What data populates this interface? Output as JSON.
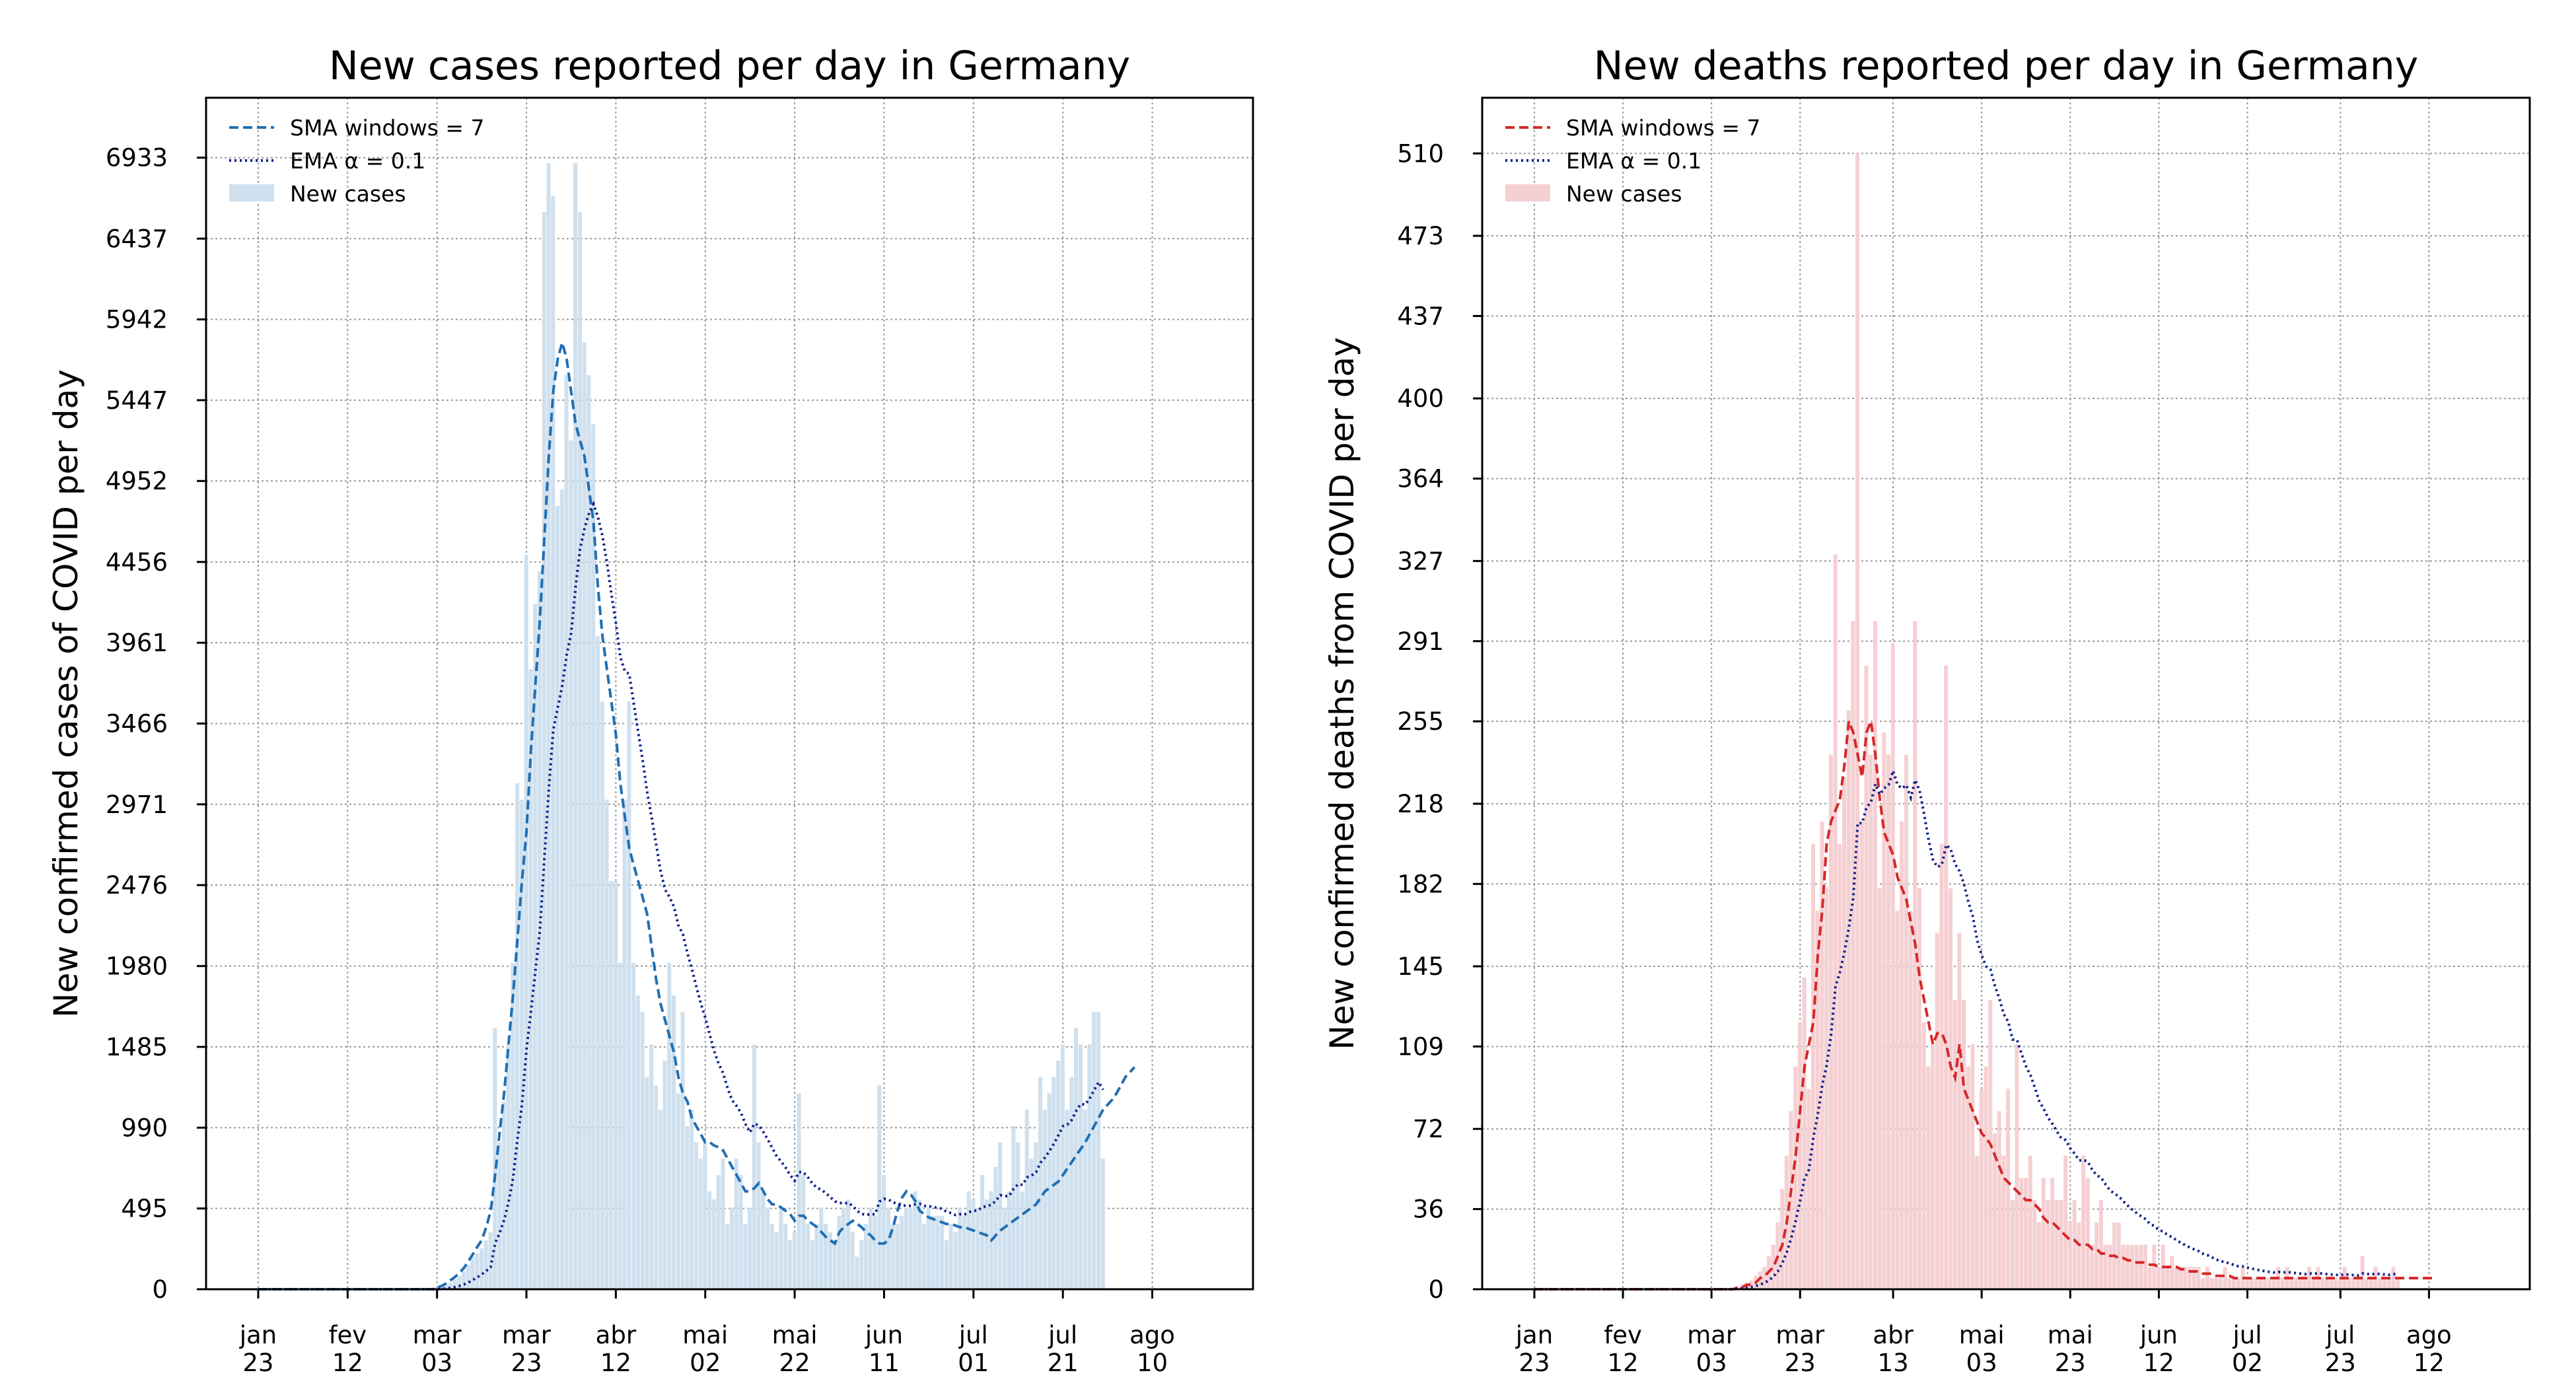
{
  "chart_data": [
    {
      "type": "bar",
      "title": "New cases reported per day in Germany",
      "xlabel": "",
      "ylabel": "New confirmed cases of COVID per day",
      "grid": true,
      "legend_position": "top-left",
      "colors": {
        "bars": "#cfe0ee",
        "sma": "#1f6fb4",
        "ema": "#0c1f8a"
      },
      "ylim": [
        0,
        7300
      ],
      "y_ticks": [
        "0",
        "495",
        "990",
        "1485",
        "1980",
        "2476",
        "2971",
        "3466",
        "3961",
        "4456",
        "4952",
        "5447",
        "5942",
        "6437",
        "6933"
      ],
      "x_ticks": [
        {
          "month": "jan",
          "day": "23"
        },
        {
          "month": "fev",
          "day": "12"
        },
        {
          "month": "mar",
          "day": "03"
        },
        {
          "month": "mar",
          "day": "23"
        },
        {
          "month": "abr",
          "day": "12"
        },
        {
          "month": "mai",
          "day": "02"
        },
        {
          "month": "mai",
          "day": "22"
        },
        {
          "month": "jun",
          "day": "11"
        },
        {
          "month": "jul",
          "day": "01"
        },
        {
          "month": "jul",
          "day": "21"
        },
        {
          "month": "ago",
          "day": "10"
        }
      ],
      "x_start": "jan 23",
      "legend": [
        "SMA windows = 7",
        "EMA α = 0.1",
        "New cases"
      ],
      "bar_values": [
        0,
        0,
        0,
        0,
        0,
        0,
        0,
        0,
        0,
        0,
        0,
        0,
        0,
        0,
        0,
        0,
        0,
        0,
        0,
        0,
        0,
        0,
        0,
        0,
        0,
        0,
        0,
        0,
        0,
        0,
        0,
        0,
        0,
        0,
        0,
        0,
        0,
        0,
        0,
        0,
        10,
        15,
        25,
        40,
        60,
        80,
        110,
        150,
        200,
        220,
        250,
        300,
        350,
        1600,
        900,
        1150,
        1500,
        2000,
        3100,
        3000,
        4500,
        3800,
        4200,
        4400,
        6600,
        6900,
        6700,
        4800,
        4900,
        5600,
        5200,
        6900,
        6600,
        5800,
        5600,
        5300,
        4000,
        3600,
        3000,
        2500,
        2500,
        2000,
        3000,
        3600,
        2000,
        1800,
        1700,
        1300,
        1500,
        1250,
        1100,
        1400,
        2000,
        1800,
        1200,
        1700,
        1000,
        1100,
        900,
        800,
        900,
        600,
        550,
        700,
        800,
        400,
        500,
        800,
        700,
        400,
        500,
        1500,
        900,
        600,
        500,
        400,
        350,
        500,
        400,
        300,
        350,
        1200,
        700,
        400,
        300,
        400,
        500,
        400,
        350,
        300,
        450,
        500,
        550,
        350,
        200,
        300,
        400,
        500,
        450,
        1250,
        700,
        500,
        400,
        400,
        450,
        500,
        500,
        600,
        550,
        400,
        500,
        450,
        450,
        450,
        300,
        400,
        350,
        500,
        450,
        600,
        550,
        500,
        700,
        550,
        600,
        750,
        900,
        500,
        600,
        1000,
        900,
        600,
        1100,
        800,
        900,
        1300,
        1100,
        1200,
        1300,
        1400,
        1500,
        1100,
        1300,
        1600,
        1500,
        1100,
        1500,
        1700,
        1700,
        800
      ],
      "sma_values": [
        0,
        0,
        0,
        0,
        0,
        0,
        0,
        0,
        0,
        0,
        0,
        0,
        0,
        0,
        0,
        0,
        0,
        0,
        0,
        0,
        0,
        0,
        0,
        0,
        0,
        0,
        0,
        0,
        0,
        0,
        0,
        0,
        0,
        0,
        0,
        0,
        0,
        0,
        0,
        0,
        10,
        20,
        35,
        55,
        75,
        100,
        130,
        170,
        215,
        260,
        300,
        380,
        480,
        700,
        960,
        1200,
        1500,
        1800,
        2150,
        2500,
        2800,
        3300,
        3700,
        4100,
        4600,
        5100,
        5500,
        5700,
        5800,
        5700,
        5500,
        5300,
        5200,
        5100,
        4900,
        4700,
        4300,
        4000,
        3800,
        3600,
        3400,
        3100,
        2900,
        2700,
        2600,
        2500,
        2400,
        2300,
        2100,
        1900,
        1750,
        1650,
        1550,
        1450,
        1300,
        1200,
        1150,
        1050,
        1000,
        950,
        900,
        900,
        880,
        870,
        850,
        800,
        750,
        700,
        650,
        600,
        600,
        620,
        650,
        600,
        550,
        520,
        520,
        500,
        480,
        460,
        420,
        450,
        450,
        420,
        400,
        380,
        350,
        320,
        300,
        280,
        350,
        380,
        400,
        420,
        400,
        380,
        350,
        330,
        300,
        280,
        280,
        300,
        380,
        480,
        560,
        600,
        580,
        540,
        480,
        460,
        440,
        430,
        420,
        410,
        400,
        400,
        390,
        380,
        380,
        370,
        360,
        350,
        340,
        330,
        300,
        330,
        360,
        380,
        400,
        420,
        440,
        460,
        480,
        500,
        520,
        560,
        600,
        620,
        640,
        660,
        700,
        740,
        780,
        820,
        860,
        900,
        950,
        1000,
        1050,
        1100,
        1130,
        1160,
        1200,
        1250,
        1300,
        1330,
        1360
      ]
    },
    {
      "type": "bar",
      "title": "New deaths reported per day in Germany",
      "xlabel": "",
      "ylabel": "New confirmed deaths from COVID per day",
      "grid": true,
      "legend_position": "top-left",
      "colors": {
        "bars": "#f5d0d3",
        "sma": "#d62728",
        "ema": "#0c1f8a"
      },
      "ylim": [
        0,
        535
      ],
      "y_ticks": [
        "0",
        "36",
        "72",
        "109",
        "145",
        "182",
        "218",
        "255",
        "291",
        "327",
        "364",
        "400",
        "437",
        "473",
        "510"
      ],
      "x_ticks": [
        {
          "month": "jan",
          "day": "23"
        },
        {
          "month": "fev",
          "day": "12"
        },
        {
          "month": "mar",
          "day": "03"
        },
        {
          "month": "mar",
          "day": "23"
        },
        {
          "month": "abr",
          "day": "13"
        },
        {
          "month": "mai",
          "day": "03"
        },
        {
          "month": "mai",
          "day": "23"
        },
        {
          "month": "jun",
          "day": "12"
        },
        {
          "month": "jul",
          "day": "02"
        },
        {
          "month": "jul",
          "day": "23"
        },
        {
          "month": "ago",
          "day": "12"
        }
      ],
      "x_start": "jan 23",
      "legend": [
        "SMA windows = 7",
        "EMA α = 0.1",
        "New cases"
      ],
      "bar_values": [
        0,
        0,
        0,
        0,
        0,
        0,
        0,
        0,
        0,
        0,
        0,
        0,
        0,
        0,
        0,
        0,
        0,
        0,
        0,
        0,
        0,
        0,
        0,
        0,
        0,
        0,
        0,
        0,
        0,
        0,
        0,
        0,
        0,
        0,
        0,
        0,
        0,
        0,
        0,
        0,
        0,
        0,
        0,
        0,
        0,
        1,
        1,
        2,
        3,
        4,
        6,
        8,
        10,
        15,
        20,
        30,
        45,
        60,
        80,
        100,
        120,
        140,
        90,
        200,
        170,
        210,
        180,
        240,
        330,
        200,
        230,
        260,
        300,
        510,
        210,
        280,
        240,
        300,
        180,
        250,
        240,
        290,
        170,
        210,
        240,
        170,
        300,
        180,
        120,
        100,
        110,
        160,
        200,
        280,
        180,
        130,
        160,
        130,
        100,
        110,
        60,
        90,
        100,
        130,
        70,
        80,
        60,
        90,
        40,
        110,
        50,
        50,
        60,
        40,
        30,
        50,
        40,
        50,
        40,
        40,
        60,
        30,
        40,
        30,
        60,
        50,
        20,
        30,
        40,
        20,
        20,
        30,
        30,
        20,
        20,
        20,
        20,
        20,
        20,
        10,
        20,
        10,
        20,
        10,
        15,
        10,
        10,
        10,
        10,
        10,
        10,
        5,
        10,
        5,
        5,
        5,
        10,
        5,
        5,
        5,
        10,
        5,
        5,
        5,
        5,
        5,
        5,
        5,
        10,
        5,
        10,
        5,
        5,
        5,
        5,
        10,
        5,
        10,
        5,
        5,
        5,
        5,
        5,
        10,
        5,
        5,
        5,
        15,
        5,
        5,
        10,
        5,
        5,
        5,
        10,
        5
      ],
      "sma_values": [
        0,
        0,
        0,
        0,
        0,
        0,
        0,
        0,
        0,
        0,
        0,
        0,
        0,
        0,
        0,
        0,
        0,
        0,
        0,
        0,
        0,
        0,
        0,
        0,
        0,
        0,
        0,
        0,
        0,
        0,
        0,
        0,
        0,
        0,
        0,
        0,
        0,
        0,
        0,
        0,
        0,
        0,
        0,
        0,
        0,
        0,
        1,
        1,
        2,
        2,
        3,
        5,
        6,
        8,
        10,
        15,
        20,
        30,
        45,
        60,
        80,
        100,
        110,
        120,
        150,
        170,
        200,
        210,
        215,
        220,
        235,
        255,
        250,
        240,
        230,
        250,
        255,
        240,
        220,
        205,
        200,
        195,
        185,
        180,
        175,
        165,
        155,
        140,
        130,
        120,
        110,
        115,
        115,
        110,
        100,
        95,
        110,
        90,
        85,
        80,
        75,
        70,
        68,
        65,
        60,
        55,
        50,
        48,
        46,
        44,
        42,
        40,
        40,
        38,
        36,
        32,
        30,
        30,
        28,
        26,
        24,
        22,
        22,
        20,
        20,
        20,
        18,
        18,
        16,
        16,
        15,
        15,
        14,
        14,
        13,
        13,
        12,
        12,
        12,
        11,
        11,
        10,
        10,
        10,
        10,
        10,
        9,
        9,
        8,
        8,
        8,
        7,
        7,
        7,
        6,
        6,
        6,
        6,
        5,
        5,
        5,
        5,
        5,
        5,
        5,
        5,
        5,
        5,
        5,
        5,
        5,
        5,
        5,
        5,
        5,
        5,
        5,
        5,
        5,
        5,
        5,
        5,
        5,
        5,
        5,
        5,
        5,
        5,
        5,
        5,
        5,
        5,
        5,
        5,
        5,
        5,
        5,
        5,
        5,
        5,
        5,
        5,
        5,
        5
      ]
    }
  ]
}
